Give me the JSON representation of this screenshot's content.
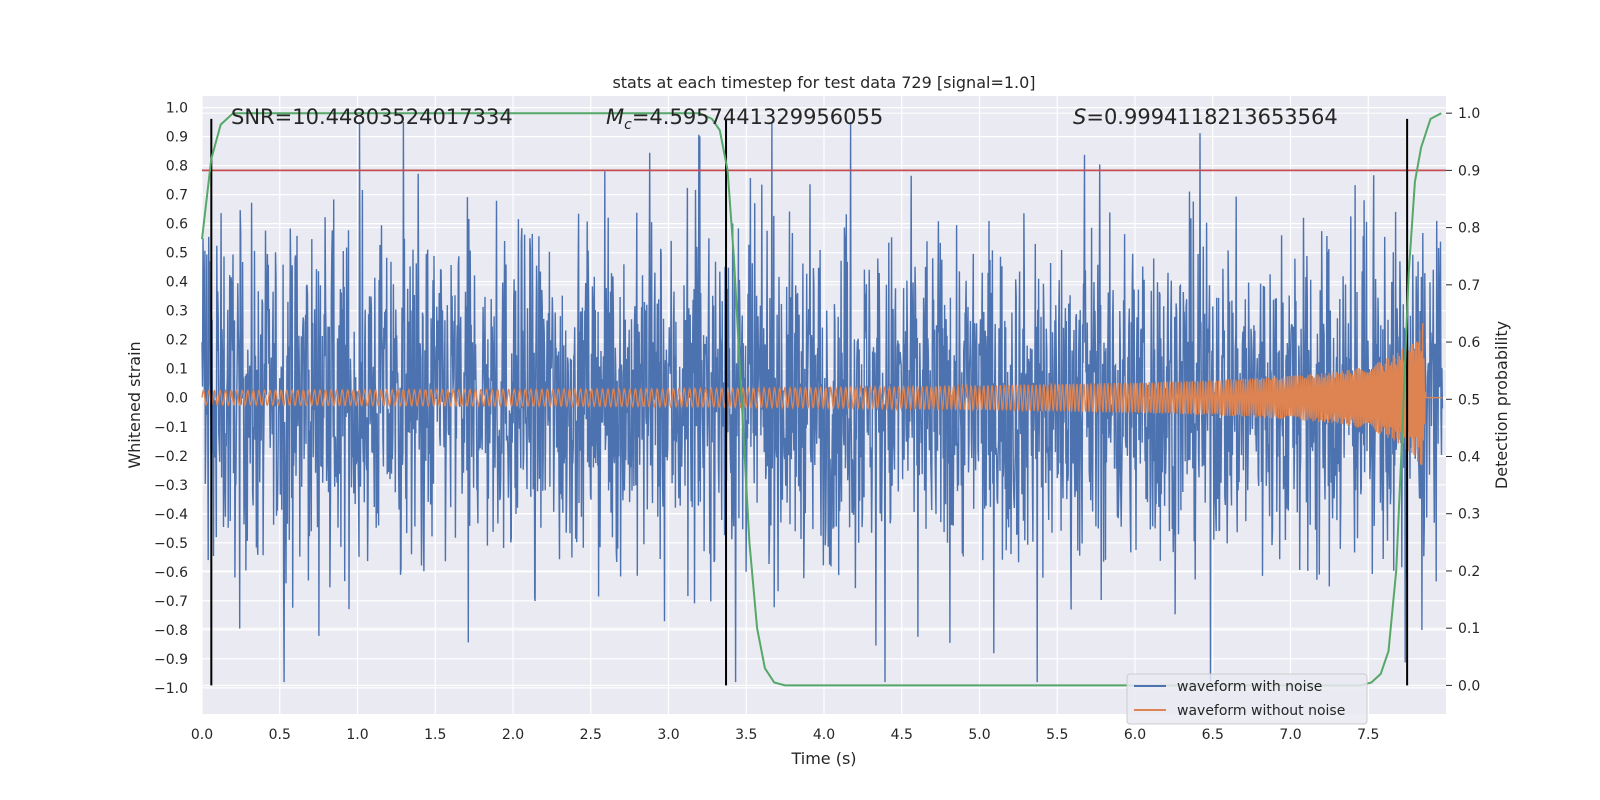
{
  "chart_data": {
    "type": "line",
    "title": "stats at each timestep for test data 729 [signal=1.0]",
    "xlabel": "Time (s)",
    "ylabel_left": "Whitened strain",
    "ylabel_right": "Detection probability",
    "xlim": [
      0.0,
      8.0
    ],
    "ylim_left": [
      -1.09,
      1.04
    ],
    "ylim_right": [
      -0.05,
      1.03
    ],
    "x_ticks": [
      "0.0",
      "0.5",
      "1.0",
      "1.5",
      "2.0",
      "2.5",
      "3.0",
      "3.5",
      "4.0",
      "4.5",
      "5.0",
      "5.5",
      "6.0",
      "6.5",
      "7.0",
      "7.5"
    ],
    "y_left_ticks": [
      "1.0",
      "0.9",
      "0.8",
      "0.7",
      "0.6",
      "0.5",
      "0.4",
      "0.3",
      "0.2",
      "0.1",
      "0.0",
      "−0.1",
      "−0.2",
      "−0.3",
      "−0.4",
      "−0.5",
      "−0.6",
      "−0.7",
      "−0.8",
      "−0.9",
      "−1.0"
    ],
    "y_right_ticks": [
      "1.0",
      "0.9",
      "0.8",
      "0.7",
      "0.6",
      "0.5",
      "0.4",
      "0.3",
      "0.2",
      "0.1",
      "0.0"
    ],
    "grid": true,
    "annotations": {
      "snr": "SNR=10.44803524017334",
      "mc_symbol": "M",
      "mc_sub": "c",
      "mc_value": "=4.5957441329956055",
      "s_symbol": "S",
      "s_value": "=0.9994118213653564"
    },
    "threshold": {
      "value": 0.9,
      "axis": "right",
      "color": "#c44e52"
    },
    "vertical_markers_x": [
      0.06,
      3.37,
      7.75
    ],
    "series": [
      {
        "name": "waveform with noise",
        "color": "#4c72b0",
        "description": "whitened noisy strain, bulk amplitude about ±0.4, peaks about ±0.95"
      },
      {
        "name": "waveform without noise",
        "color": "#dd8452",
        "envelope": [
          [
            0.0,
            0.025
          ],
          [
            1.0,
            0.027
          ],
          [
            2.0,
            0.029
          ],
          [
            3.0,
            0.031
          ],
          [
            4.0,
            0.035
          ],
          [
            5.0,
            0.042
          ],
          [
            6.0,
            0.052
          ],
          [
            6.5,
            0.06
          ],
          [
            7.0,
            0.075
          ],
          [
            7.3,
            0.09
          ],
          [
            7.5,
            0.11
          ],
          [
            7.6,
            0.13
          ],
          [
            7.7,
            0.16
          ],
          [
            7.8,
            0.2
          ],
          [
            7.85,
            0.26
          ],
          [
            7.87,
            0.0
          ],
          [
            8.0,
            0.0
          ]
        ]
      },
      {
        "name": "detection probability",
        "color": "#55a868",
        "axis": "right",
        "points": [
          [
            0.0,
            0.78
          ],
          [
            0.06,
            0.92
          ],
          [
            0.12,
            0.98
          ],
          [
            0.2,
            1.0
          ],
          [
            0.3,
            1.0
          ],
          [
            3.2,
            1.0
          ],
          [
            3.28,
            0.99
          ],
          [
            3.33,
            0.97
          ],
          [
            3.38,
            0.9
          ],
          [
            3.42,
            0.75
          ],
          [
            3.47,
            0.5
          ],
          [
            3.52,
            0.25
          ],
          [
            3.57,
            0.1
          ],
          [
            3.62,
            0.03
          ],
          [
            3.68,
            0.005
          ],
          [
            3.75,
            0.0
          ],
          [
            7.45,
            0.0
          ],
          [
            7.52,
            0.005
          ],
          [
            7.58,
            0.02
          ],
          [
            7.63,
            0.06
          ],
          [
            7.68,
            0.2
          ],
          [
            7.72,
            0.45
          ],
          [
            7.76,
            0.72
          ],
          [
            7.8,
            0.88
          ],
          [
            7.84,
            0.94
          ],
          [
            7.9,
            0.99
          ],
          [
            7.97,
            1.0
          ]
        ]
      }
    ],
    "legend": {
      "position": "lower right"
    }
  }
}
